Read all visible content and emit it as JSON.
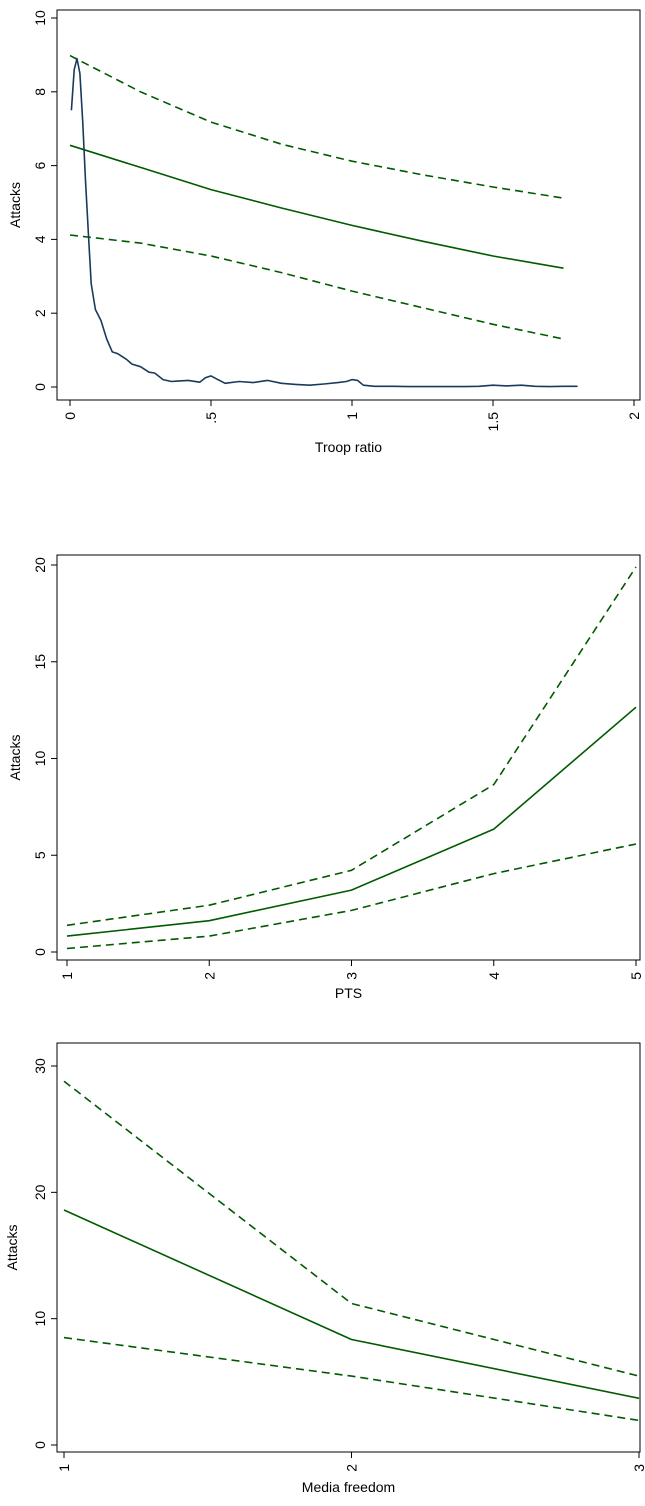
{
  "colors": {
    "fit": "#005a00",
    "density": "#1a3a5c",
    "axis": "#000000"
  },
  "chart_data": [
    {
      "type": "line",
      "xlabel": "Troop ratio",
      "ylabel": "Attacks",
      "xlim": [
        0,
        2
      ],
      "ylim": [
        0,
        10
      ],
      "xticks": [
        0,
        0.5,
        1,
        1.5,
        2
      ],
      "xtick_labels": [
        "0",
        ".5",
        "1",
        "1.5",
        "2"
      ],
      "yticks": [
        0,
        2,
        4,
        6,
        8,
        10
      ],
      "ytick_labels": [
        "0",
        "2",
        "4",
        "6",
        "8",
        "10"
      ],
      "grid": false,
      "series": [
        {
          "style": "solid",
          "color": "#005a00",
          "x": [
            0,
            0.25,
            0.5,
            0.75,
            1,
            1.25,
            1.5,
            1.75
          ],
          "y": [
            6.55,
            5.95,
            5.35,
            4.85,
            4.38,
            3.95,
            3.55,
            3.22
          ]
        },
        {
          "style": "dashed",
          "color": "#005a00",
          "x": [
            0,
            0.25,
            0.5,
            0.75,
            1,
            1.25,
            1.5,
            1.75
          ],
          "y": [
            8.98,
            8.0,
            7.18,
            6.58,
            6.12,
            5.75,
            5.42,
            5.12
          ]
        },
        {
          "style": "dashed",
          "color": "#005a00",
          "x": [
            0,
            0.25,
            0.5,
            0.75,
            1,
            1.25,
            1.5,
            1.75
          ],
          "y": [
            4.12,
            3.9,
            3.55,
            3.1,
            2.6,
            2.15,
            1.7,
            1.3
          ]
        },
        {
          "style": "solid",
          "color": "#1a3a5c",
          "x": [
            0.005,
            0.015,
            0.025,
            0.035,
            0.045,
            0.055,
            0.065,
            0.075,
            0.09,
            0.11,
            0.13,
            0.15,
            0.17,
            0.2,
            0.22,
            0.25,
            0.28,
            0.3,
            0.33,
            0.36,
            0.38,
            0.42,
            0.46,
            0.48,
            0.5,
            0.52,
            0.55,
            0.6,
            0.65,
            0.7,
            0.75,
            0.8,
            0.85,
            0.9,
            0.95,
            0.98,
            1.0,
            1.02,
            1.04,
            1.08,
            1.15,
            1.2,
            1.3,
            1.4,
            1.45,
            1.5,
            1.55,
            1.6,
            1.65,
            1.7,
            1.75,
            1.8
          ],
          "y": [
            7.5,
            8.6,
            8.9,
            8.5,
            7.2,
            5.6,
            4.2,
            2.8,
            2.1,
            1.8,
            1.3,
            0.95,
            0.9,
            0.75,
            0.62,
            0.55,
            0.4,
            0.38,
            0.2,
            0.15,
            0.16,
            0.18,
            0.13,
            0.25,
            0.3,
            0.22,
            0.1,
            0.15,
            0.12,
            0.18,
            0.1,
            0.07,
            0.05,
            0.08,
            0.12,
            0.15,
            0.2,
            0.18,
            0.05,
            0.02,
            0.02,
            0.01,
            0.01,
            0.01,
            0.02,
            0.05,
            0.03,
            0.05,
            0.02,
            0.01,
            0.02,
            0.02
          ]
        }
      ]
    },
    {
      "type": "line",
      "xlabel": "PTS",
      "ylabel": "Attacks",
      "xlim": [
        1,
        5
      ],
      "ylim": [
        0,
        20
      ],
      "xticks": [
        1,
        2,
        3,
        4,
        5
      ],
      "xtick_labels": [
        "1",
        "2",
        "3",
        "4",
        "5"
      ],
      "yticks": [
        0,
        5,
        10,
        15,
        20
      ],
      "ytick_labels": [
        "0",
        "5",
        "10",
        "15",
        "20"
      ],
      "grid": false,
      "series": [
        {
          "style": "solid",
          "color": "#005a00",
          "x": [
            1,
            2,
            3,
            4,
            5
          ],
          "y": [
            0.82,
            1.62,
            3.2,
            6.35,
            12.65
          ]
        },
        {
          "style": "dashed",
          "color": "#005a00",
          "x": [
            1,
            2,
            3,
            4,
            5
          ],
          "y": [
            1.38,
            2.42,
            4.22,
            8.65,
            19.9
          ]
        },
        {
          "style": "dashed",
          "color": "#005a00",
          "x": [
            1,
            2,
            3,
            4,
            5
          ],
          "y": [
            0.18,
            0.82,
            2.15,
            4.05,
            5.58
          ]
        }
      ]
    },
    {
      "type": "line",
      "xlabel": "Media freedom",
      "ylabel": "Attacks",
      "xlim": [
        1,
        3
      ],
      "ylim": [
        0,
        30
      ],
      "xticks": [
        1,
        2,
        3
      ],
      "xtick_labels": [
        "1",
        "2",
        "3"
      ],
      "yticks": [
        0,
        10,
        20,
        30
      ],
      "ytick_labels": [
        "0",
        "10",
        "20",
        "30"
      ],
      "grid": false,
      "series": [
        {
          "style": "solid",
          "color": "#005a00",
          "x": [
            1,
            2,
            3
          ],
          "y": [
            18.6,
            8.35,
            3.7
          ]
        },
        {
          "style": "dashed",
          "color": "#005a00",
          "x": [
            1,
            2,
            3
          ],
          "y": [
            28.8,
            11.2,
            5.45
          ]
        },
        {
          "style": "dashed",
          "color": "#005a00",
          "x": [
            1,
            2,
            3
          ],
          "y": [
            8.5,
            5.45,
            1.95
          ]
        }
      ]
    }
  ]
}
